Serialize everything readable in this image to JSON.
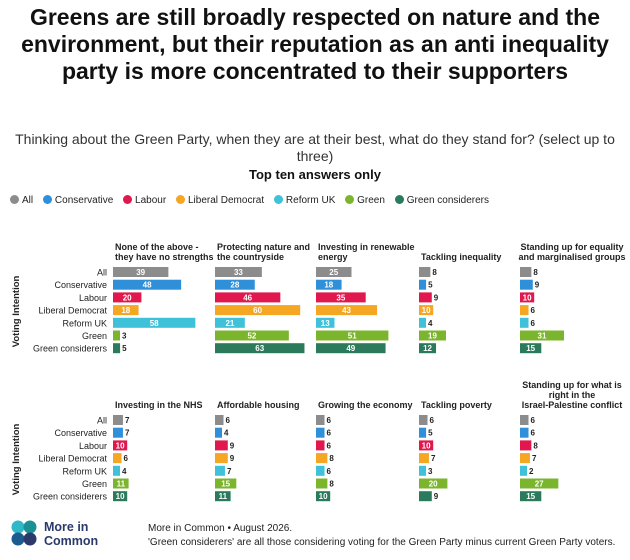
{
  "title": "Greens are still broadly respected on nature and the environment, but their reputation as an anti inequality party is more concentrated to their supporters",
  "subtitle": "Thinking about the Green Party, when they are at their best, what do they stand for? (select up to three)",
  "subtitle2": "Top ten answers only",
  "legend": [
    {
      "label": "All",
      "color": "#8c8c8c"
    },
    {
      "label": "Conservative",
      "color": "#2f8fd8"
    },
    {
      "label": "Labour",
      "color": "#e0184e"
    },
    {
      "label": "Liberal Democrat",
      "color": "#f5a623"
    },
    {
      "label": "Reform UK",
      "color": "#3fc1d9"
    },
    {
      "label": "Green",
      "color": "#7bb52e"
    },
    {
      "label": "Green considerers",
      "color": "#2c7a5c"
    }
  ],
  "chart_data": {
    "type": "bar",
    "orientation": "horizontal",
    "y_axis_label": "Voting Intention",
    "groups": [
      "All",
      "Conservative",
      "Labour",
      "Liberal Democrat",
      "Reform UK",
      "Green",
      "Green considerers"
    ],
    "panels": [
      {
        "title": "None of the above - they have no strengths",
        "values": [
          39,
          48,
          20,
          18,
          58,
          3,
          5
        ]
      },
      {
        "title": "Protecting nature and the countryside",
        "values": [
          33,
          28,
          46,
          60,
          21,
          52,
          63
        ]
      },
      {
        "title": "Investing in renewable energy",
        "values": [
          25,
          18,
          35,
          43,
          13,
          51,
          49
        ]
      },
      {
        "title": "Tackling inequality",
        "values": [
          8,
          5,
          9,
          10,
          4,
          19,
          12
        ]
      },
      {
        "title": "Standing up for equality and marginalised groups",
        "values": [
          8,
          9,
          10,
          6,
          6,
          31,
          15
        ]
      },
      {
        "title": "Investing in the NHS",
        "values": [
          7,
          7,
          10,
          6,
          4,
          11,
          10
        ]
      },
      {
        "title": "Affordable housing",
        "values": [
          6,
          4,
          9,
          9,
          7,
          15,
          11
        ]
      },
      {
        "title": "Growing the economy",
        "values": [
          6,
          6,
          6,
          8,
          6,
          8,
          10
        ]
      },
      {
        "title": "Tackling poverty",
        "values": [
          6,
          5,
          10,
          7,
          3,
          20,
          9
        ]
      },
      {
        "title": "Standing up for what is right in the Israel-Palestine conflict",
        "values": [
          6,
          6,
          8,
          7,
          2,
          27,
          15
        ]
      }
    ]
  },
  "footer": {
    "logo_line1": "More in",
    "logo_line2": "Common",
    "source": "More in Common • August 2026.",
    "note": "'Green considerers' are all those considering voting for the Green Party minus current Green Party voters."
  }
}
